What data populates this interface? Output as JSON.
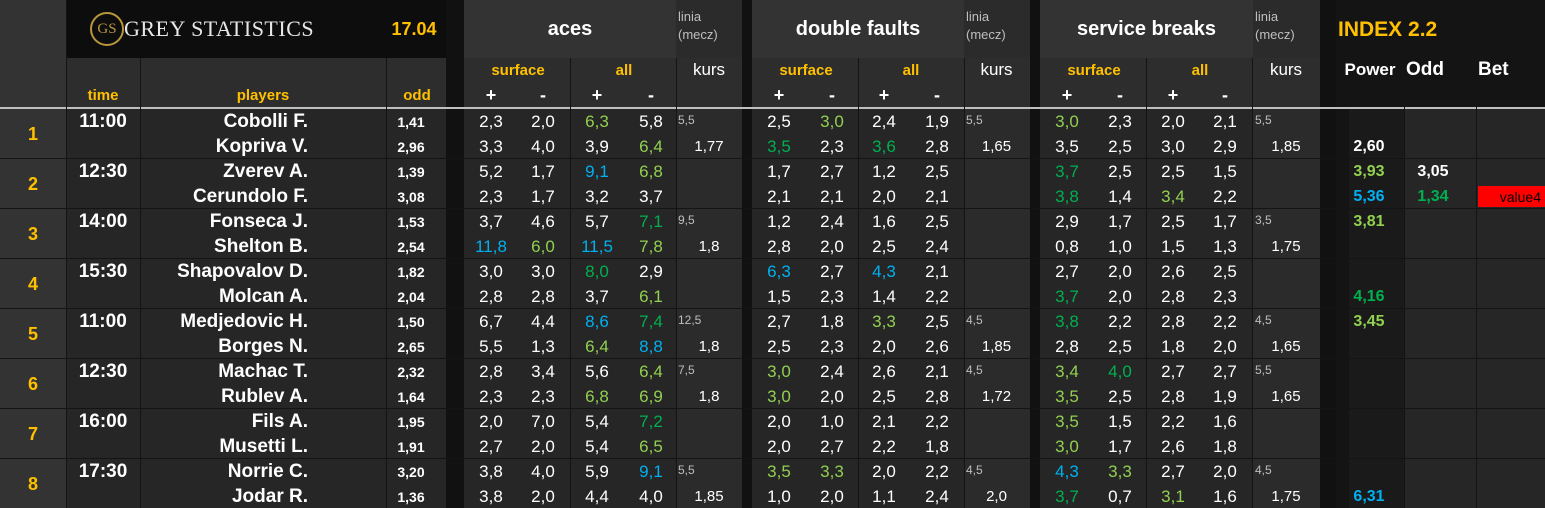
{
  "header": {
    "logo_monogram": "GS",
    "brand": "GREY STATISTICS",
    "date": "17.04",
    "groups": [
      "aces",
      "double faults",
      "service breaks"
    ],
    "linia": "linia",
    "mecz": "(mecz)",
    "surface": "surface",
    "all": "all",
    "kurs": "kurs",
    "plus": "+",
    "minus": "-",
    "index_title": "INDEX 2.2",
    "power": "Power",
    "odd_col": "Odd",
    "bet": "Bet",
    "time": "time",
    "players": "players",
    "odd": "odd"
  },
  "colors": {
    "accent": "#ffc000",
    "bg": "#262626",
    "white": "#ffffff",
    "green": "#00b050",
    "light_green": "#92d050",
    "blue": "#00b0f0",
    "red": "#ff0000"
  },
  "matches": [
    {
      "num": "1",
      "time": "11:00",
      "p1": "Cobolli F.",
      "p2": "Kopriva V.",
      "o1": "1,41",
      "o2": "2,96",
      "aces": {
        "s1": [
          "2,3",
          "2,0"
        ],
        "a1": [
          [
            "6,3",
            "lg"
          ],
          [
            "5,8",
            ""
          ]
        ],
        "s2": [
          [
            "3,3",
            ""
          ],
          [
            "4,0",
            ""
          ]
        ],
        "a2": [
          [
            "3,9",
            ""
          ],
          [
            "6,4",
            "lg"
          ]
        ],
        "linia": "5,5",
        "kurs": "1,77"
      },
      "df": {
        "s1": [
          [
            "2,5",
            ""
          ],
          [
            "3,0",
            "lg"
          ]
        ],
        "a1": [
          [
            "2,4",
            ""
          ],
          [
            "1,9",
            ""
          ]
        ],
        "s2": [
          [
            "3,5",
            "g"
          ],
          [
            "2,3",
            ""
          ]
        ],
        "a2": [
          [
            "3,6",
            "g"
          ],
          [
            "2,8",
            ""
          ]
        ],
        "linia": "5,5",
        "kurs": "1,65"
      },
      "sb": {
        "s1": [
          [
            "3,0",
            "lg"
          ],
          [
            "2,3",
            ""
          ]
        ],
        "a1": [
          [
            "2,0",
            ""
          ],
          [
            "2,1",
            ""
          ]
        ],
        "s2": [
          [
            "3,5",
            ""
          ],
          [
            "2,5",
            ""
          ]
        ],
        "a2": [
          [
            "3,0",
            ""
          ],
          [
            "2,9",
            ""
          ]
        ],
        "linia": "5,5",
        "kurs": "1,85"
      },
      "index": {
        "power1": [
          "",
          ""
        ],
        "power2": [
          "2,60",
          ""
        ],
        "odd1": [
          "",
          ""
        ],
        "odd2": [
          "",
          ""
        ],
        "bet1": "",
        "bet2": ""
      }
    },
    {
      "num": "2",
      "time": "12:30",
      "p1": "Zverev A.",
      "p2": "Cerundolo F.",
      "o1": "1,39",
      "o2": "3,08",
      "aces": {
        "s1": [
          "5,2",
          "1,7"
        ],
        "a1": [
          [
            "9,1",
            "b"
          ],
          [
            "6,8",
            "lg"
          ]
        ],
        "s2": [
          [
            "2,3",
            ""
          ],
          [
            "1,7",
            ""
          ]
        ],
        "a2": [
          [
            "3,2",
            ""
          ],
          [
            "3,7",
            ""
          ]
        ],
        "linia": "",
        "kurs": ""
      },
      "df": {
        "s1": [
          [
            "1,7",
            ""
          ],
          [
            "2,7",
            ""
          ]
        ],
        "a1": [
          [
            "1,2",
            ""
          ],
          [
            "2,5",
            ""
          ]
        ],
        "s2": [
          [
            "2,1",
            ""
          ],
          [
            "2,1",
            ""
          ]
        ],
        "a2": [
          [
            "2,0",
            ""
          ],
          [
            "2,1",
            ""
          ]
        ],
        "linia": "",
        "kurs": ""
      },
      "sb": {
        "s1": [
          [
            "3,7",
            "g"
          ],
          [
            "2,5",
            ""
          ]
        ],
        "a1": [
          [
            "2,5",
            ""
          ],
          [
            "1,5",
            ""
          ]
        ],
        "s2": [
          [
            "3,8",
            "g"
          ],
          [
            "1,4",
            ""
          ]
        ],
        "a2": [
          [
            "3,4",
            "lg"
          ],
          [
            "2,2",
            ""
          ]
        ],
        "linia": "",
        "kurs": ""
      },
      "index": {
        "power1": [
          "3,93",
          "lg"
        ],
        "power2": [
          "5,36",
          "b"
        ],
        "odd1": [
          "3,05",
          ""
        ],
        "odd2": [
          "1,34",
          "g"
        ],
        "bet1": "",
        "bet2": "value4"
      }
    },
    {
      "num": "3",
      "time": "14:00",
      "p1": "Fonseca J.",
      "p2": "Shelton B.",
      "o1": "1,53",
      "o2": "2,54",
      "aces": {
        "s1": [
          "3,7",
          "4,6"
        ],
        "a1": [
          [
            "5,7",
            ""
          ],
          [
            "7,1",
            "g"
          ]
        ],
        "s2": [
          [
            "11,8",
            "b"
          ],
          [
            "6,0",
            "lg"
          ]
        ],
        "a2": [
          [
            "11,5",
            "b"
          ],
          [
            "7,8",
            "lg"
          ]
        ],
        "linia": "9,5",
        "kurs": "1,8"
      },
      "df": {
        "s1": [
          [
            "1,2",
            ""
          ],
          [
            "2,4",
            ""
          ]
        ],
        "a1": [
          [
            "1,6",
            ""
          ],
          [
            "2,5",
            ""
          ]
        ],
        "s2": [
          [
            "2,8",
            ""
          ],
          [
            "2,0",
            ""
          ]
        ],
        "a2": [
          [
            "2,5",
            ""
          ],
          [
            "2,4",
            ""
          ]
        ],
        "linia": "",
        "kurs": ""
      },
      "sb": {
        "s1": [
          [
            "2,9",
            ""
          ],
          [
            "1,7",
            ""
          ]
        ],
        "a1": [
          [
            "2,5",
            ""
          ],
          [
            "1,7",
            ""
          ]
        ],
        "s2": [
          [
            "0,8",
            ""
          ],
          [
            "1,0",
            ""
          ]
        ],
        "a2": [
          [
            "1,5",
            ""
          ],
          [
            "1,3",
            ""
          ]
        ],
        "linia": "3,5",
        "kurs": "1,75"
      },
      "index": {
        "power1": [
          "3,81",
          "lg"
        ],
        "power2": [
          "",
          ""
        ],
        "odd1": [
          "",
          ""
        ],
        "odd2": [
          "",
          ""
        ],
        "bet1": "",
        "bet2": ""
      }
    },
    {
      "num": "4",
      "time": "15:30",
      "p1": "Shapovalov D.",
      "p2": "Molcan A.",
      "o1": "1,82",
      "o2": "2,04",
      "aces": {
        "s1": [
          "3,0",
          "3,0"
        ],
        "a1": [
          [
            "8,0",
            "g"
          ],
          [
            "2,9",
            ""
          ]
        ],
        "s2": [
          [
            "2,8",
            ""
          ],
          [
            "2,8",
            ""
          ]
        ],
        "a2": [
          [
            "3,7",
            ""
          ],
          [
            "6,1",
            "lg"
          ]
        ],
        "linia": "",
        "kurs": ""
      },
      "df": {
        "s1": [
          [
            "6,3",
            "b"
          ],
          [
            "2,7",
            ""
          ]
        ],
        "a1": [
          [
            "4,3",
            "b"
          ],
          [
            "2,1",
            ""
          ]
        ],
        "s2": [
          [
            "1,5",
            ""
          ],
          [
            "2,3",
            ""
          ]
        ],
        "a2": [
          [
            "1,4",
            ""
          ],
          [
            "2,2",
            ""
          ]
        ],
        "linia": "",
        "kurs": ""
      },
      "sb": {
        "s1": [
          [
            "2,7",
            ""
          ],
          [
            "2,0",
            ""
          ]
        ],
        "a1": [
          [
            "2,6",
            ""
          ],
          [
            "2,5",
            ""
          ]
        ],
        "s2": [
          [
            "3,7",
            "g"
          ],
          [
            "2,0",
            ""
          ]
        ],
        "a2": [
          [
            "2,8",
            ""
          ],
          [
            "2,3",
            ""
          ]
        ],
        "linia": "",
        "kurs": ""
      },
      "index": {
        "power1": [
          "",
          ""
        ],
        "power2": [
          "4,16",
          "g"
        ],
        "odd1": [
          "",
          ""
        ],
        "odd2": [
          "",
          ""
        ],
        "bet1": "",
        "bet2": ""
      }
    },
    {
      "num": "5",
      "time": "11:00",
      "p1": "Medjedovic H.",
      "p2": "Borges N.",
      "o1": "1,50",
      "o2": "2,65",
      "aces": {
        "s1": [
          "6,7",
          "4,4"
        ],
        "a1": [
          [
            "8,6",
            "b"
          ],
          [
            "7,4",
            "g"
          ]
        ],
        "s2": [
          [
            "5,5",
            ""
          ],
          [
            "1,3",
            ""
          ]
        ],
        "a2": [
          [
            "6,4",
            "lg"
          ],
          [
            "8,8",
            "b"
          ]
        ],
        "linia": "12,5",
        "kurs": "1,8"
      },
      "df": {
        "s1": [
          [
            "2,7",
            ""
          ],
          [
            "1,8",
            ""
          ]
        ],
        "a1": [
          [
            "3,3",
            "lg"
          ],
          [
            "2,5",
            ""
          ]
        ],
        "s2": [
          [
            "2,5",
            ""
          ],
          [
            "2,3",
            ""
          ]
        ],
        "a2": [
          [
            "2,0",
            ""
          ],
          [
            "2,6",
            ""
          ]
        ],
        "linia": "4,5",
        "kurs": "1,85"
      },
      "sb": {
        "s1": [
          [
            "3,8",
            "g"
          ],
          [
            "2,2",
            ""
          ]
        ],
        "a1": [
          [
            "2,8",
            ""
          ],
          [
            "2,2",
            ""
          ]
        ],
        "s2": [
          [
            "2,8",
            ""
          ],
          [
            "2,5",
            ""
          ]
        ],
        "a2": [
          [
            "1,8",
            ""
          ],
          [
            "2,0",
            ""
          ]
        ],
        "linia": "4,5",
        "kurs": "1,65"
      },
      "index": {
        "power1": [
          "3,45",
          "lg"
        ],
        "power2": [
          "",
          ""
        ],
        "odd1": [
          "",
          ""
        ],
        "odd2": [
          "",
          ""
        ],
        "bet1": "",
        "bet2": ""
      }
    },
    {
      "num": "6",
      "time": "12:30",
      "p1": "Machac T.",
      "p2": "Rublev A.",
      "o1": "2,32",
      "o2": "1,64",
      "aces": {
        "s1": [
          "2,8",
          "3,4"
        ],
        "a1": [
          [
            "5,6",
            ""
          ],
          [
            "6,4",
            "lg"
          ]
        ],
        "s2": [
          [
            "2,3",
            ""
          ],
          [
            "2,3",
            ""
          ]
        ],
        "a2": [
          [
            "6,8",
            "lg"
          ],
          [
            "6,9",
            "lg"
          ]
        ],
        "linia": "7,5",
        "kurs": "1,8"
      },
      "df": {
        "s1": [
          [
            "3,0",
            "lg"
          ],
          [
            "2,4",
            ""
          ]
        ],
        "a1": [
          [
            "2,6",
            ""
          ],
          [
            "2,1",
            ""
          ]
        ],
        "s2": [
          [
            "3,0",
            "lg"
          ],
          [
            "2,0",
            ""
          ]
        ],
        "a2": [
          [
            "2,5",
            ""
          ],
          [
            "2,8",
            ""
          ]
        ],
        "linia": "4,5",
        "kurs": "1,72"
      },
      "sb": {
        "s1": [
          [
            "3,4",
            "lg"
          ],
          [
            "4,0",
            "g"
          ]
        ],
        "a1": [
          [
            "2,7",
            ""
          ],
          [
            "2,7",
            ""
          ]
        ],
        "s2": [
          [
            "3,5",
            "lg"
          ],
          [
            "2,5",
            ""
          ]
        ],
        "a2": [
          [
            "2,8",
            ""
          ],
          [
            "1,9",
            ""
          ]
        ],
        "linia": "5,5",
        "kurs": "1,65"
      },
      "index": {
        "power1": [
          "",
          ""
        ],
        "power2": [
          "",
          ""
        ],
        "odd1": [
          "",
          ""
        ],
        "odd2": [
          "",
          ""
        ],
        "bet1": "",
        "bet2": ""
      }
    },
    {
      "num": "7",
      "time": "16:00",
      "p1": "Fils A.",
      "p2": "Musetti L.",
      "o1": "1,95",
      "o2": "1,91",
      "aces": {
        "s1": [
          "2,0",
          "7,0"
        ],
        "a1": [
          [
            "5,4",
            ""
          ],
          [
            "7,2",
            "g"
          ]
        ],
        "s2": [
          [
            "2,7",
            ""
          ],
          [
            "2,0",
            ""
          ]
        ],
        "a2": [
          [
            "5,4",
            ""
          ],
          [
            "6,5",
            "lg"
          ]
        ],
        "linia": "",
        "kurs": ""
      },
      "df": {
        "s1": [
          [
            "2,0",
            ""
          ],
          [
            "1,0",
            ""
          ]
        ],
        "a1": [
          [
            "2,1",
            ""
          ],
          [
            "2,2",
            ""
          ]
        ],
        "s2": [
          [
            "2,0",
            ""
          ],
          [
            "2,7",
            ""
          ]
        ],
        "a2": [
          [
            "2,2",
            ""
          ],
          [
            "1,8",
            ""
          ]
        ],
        "linia": "",
        "kurs": ""
      },
      "sb": {
        "s1": [
          [
            "3,5",
            "lg"
          ],
          [
            "1,5",
            ""
          ]
        ],
        "a1": [
          [
            "2,2",
            ""
          ],
          [
            "1,6",
            ""
          ]
        ],
        "s2": [
          [
            "3,0",
            "lg"
          ],
          [
            "1,7",
            ""
          ]
        ],
        "a2": [
          [
            "2,6",
            ""
          ],
          [
            "1,8",
            ""
          ]
        ],
        "linia": "",
        "kurs": ""
      },
      "index": {
        "power1": [
          "",
          ""
        ],
        "power2": [
          "",
          ""
        ],
        "odd1": [
          "",
          ""
        ],
        "odd2": [
          "",
          ""
        ],
        "bet1": "",
        "bet2": ""
      }
    },
    {
      "num": "8",
      "time": "17:30",
      "p1": "Norrie C.",
      "p2": "Jodar R.",
      "o1": "3,20",
      "o2": "1,36",
      "aces": {
        "s1": [
          "3,8",
          "4,0"
        ],
        "a1": [
          [
            "5,9",
            ""
          ],
          [
            "9,1",
            "b"
          ]
        ],
        "s2": [
          [
            "3,8",
            ""
          ],
          [
            "2,0",
            ""
          ]
        ],
        "a2": [
          [
            "4,4",
            ""
          ],
          [
            "4,0",
            ""
          ]
        ],
        "linia": "5,5",
        "kurs": "1,85"
      },
      "df": {
        "s1": [
          [
            "3,5",
            "lg"
          ],
          [
            "3,3",
            "lg"
          ]
        ],
        "a1": [
          [
            "2,0",
            ""
          ],
          [
            "2,2",
            ""
          ]
        ],
        "s2": [
          [
            "1,0",
            ""
          ],
          [
            "2,0",
            ""
          ]
        ],
        "a2": [
          [
            "1,1",
            ""
          ],
          [
            "2,4",
            ""
          ]
        ],
        "linia": "4,5",
        "kurs": "2,0"
      },
      "sb": {
        "s1": [
          [
            "4,3",
            "b"
          ],
          [
            "3,3",
            "lg"
          ]
        ],
        "a1": [
          [
            "2,7",
            ""
          ],
          [
            "2,0",
            ""
          ]
        ],
        "s2": [
          [
            "3,7",
            "g"
          ],
          [
            "0,7",
            ""
          ]
        ],
        "a2": [
          [
            "3,1",
            "lg"
          ],
          [
            "1,6",
            ""
          ]
        ],
        "linia": "4,5",
        "kurs": "1,75"
      },
      "index": {
        "power1": [
          "",
          ""
        ],
        "power2": [
          "6,31",
          "b"
        ],
        "odd1": [
          "",
          ""
        ],
        "odd2": [
          "",
          ""
        ],
        "bet1": "",
        "bet2": ""
      }
    }
  ]
}
